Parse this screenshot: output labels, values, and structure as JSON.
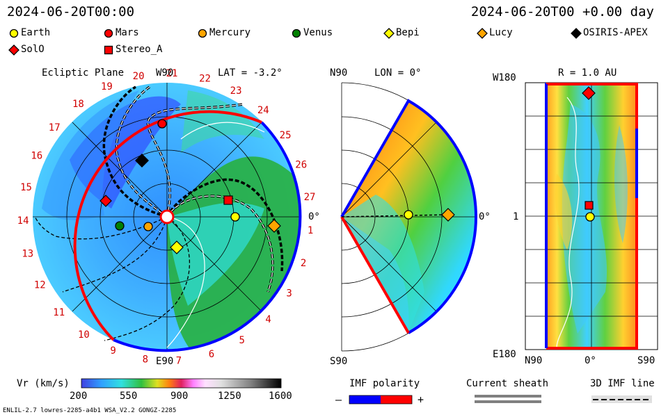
{
  "header": {
    "left_timestamp": "2024-06-20T00:00",
    "right_timestamp": "2024-06-20T00 +0.00 day"
  },
  "legend": [
    {
      "label": "Earth",
      "color": "#ffff00",
      "shape": "circle"
    },
    {
      "label": "Mars",
      "color": "#ff0000",
      "shape": "circle"
    },
    {
      "label": "Mercury",
      "color": "#ffa500",
      "shape": "circle"
    },
    {
      "label": "Venus",
      "color": "#008000",
      "shape": "circle"
    },
    {
      "label": "Bepi",
      "color": "#ffff00",
      "shape": "diamond"
    },
    {
      "label": "Lucy",
      "color": "#ffa500",
      "shape": "diamond"
    },
    {
      "label": "OSIRIS-APEX",
      "color": "#000000",
      "shape": "diamond"
    },
    {
      "label": "SolO",
      "color": "#ff0000",
      "shape": "diamond"
    },
    {
      "label": "Stereo_A",
      "color": "#ff0000",
      "shape": "square"
    }
  ],
  "ecliptic": {
    "title": "Ecliptic Plane",
    "top_label": "W90",
    "bottom_label": "E90",
    "right_label": "0°",
    "lat_label": "LAT = -3.2°",
    "carrington_labels": [
      "1",
      "2",
      "3",
      "4",
      "5",
      "6",
      "7",
      "8",
      "9",
      "10",
      "11",
      "12",
      "13",
      "14",
      "15",
      "16",
      "17",
      "18",
      "19",
      "20",
      "21",
      "22",
      "23",
      "24",
      "25",
      "26",
      "27"
    ]
  },
  "meridional": {
    "top_label": "N90",
    "bottom_label": "S90",
    "lon_label": "LON = 0°",
    "right_label": "0°"
  },
  "radial": {
    "title": "R = 1.0 AU",
    "top_left_label": "W180",
    "bottom_left_label": "E180",
    "mid_left_label": "1",
    "bottom_ticks": [
      "N90",
      "0°",
      "S90"
    ]
  },
  "colorbar": {
    "label": "Vr (km/s)",
    "ticks": [
      "200",
      "550",
      "900",
      "1250",
      "1600"
    ],
    "range": [
      200,
      1600
    ]
  },
  "imf_polarity": {
    "title": "IMF polarity",
    "minus": "–",
    "plus": "+",
    "neg_color": "#0000ff",
    "pos_color": "#ff0000"
  },
  "current_sheath": {
    "title": "Current sheath"
  },
  "imf_line": {
    "title": "3D IMF line"
  },
  "footer": {
    "left": "ENLIL-2.7 lowres-2285-a4b1 WSA_V2.2 GONGZ-2285"
  }
}
